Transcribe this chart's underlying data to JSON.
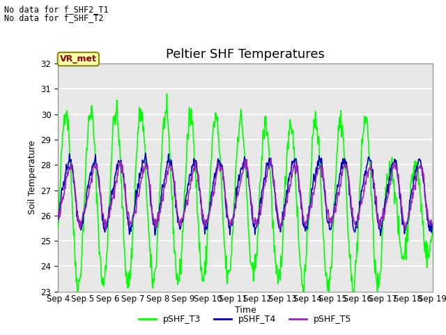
{
  "title": "Peltier SHF Temperatures",
  "xlabel": "Time",
  "ylabel": "Soil Temperature",
  "text_top_left_line1": "No data for f_SHF2_T1",
  "text_top_left_line2": "No data for f_SHF_T2",
  "annotation_box": "VR_met",
  "ylim": [
    23.0,
    32.0
  ],
  "yticks": [
    23.0,
    24.0,
    25.0,
    26.0,
    27.0,
    28.0,
    29.0,
    30.0,
    31.0,
    32.0
  ],
  "xtick_labels": [
    "Sep 4",
    "Sep 5",
    "Sep 6",
    "Sep 7",
    "Sep 8",
    "Sep 9",
    "Sep 10",
    "Sep 11",
    "Sep 12",
    "Sep 13",
    "Sep 14",
    "Sep 15",
    "Sep 16",
    "Sep 17",
    "Sep 18",
    "Sep 19"
  ],
  "legend_labels": [
    "pSHF_T3",
    "pSHF_T4",
    "pSHF_T5"
  ],
  "line_colors": [
    "#00ff00",
    "#0000bb",
    "#9922bb"
  ],
  "fig_bg_color": "#ffffff",
  "plot_bg_color": "#e8e8e8",
  "grid_color": "#ffffff",
  "title_fontsize": 13,
  "label_fontsize": 9,
  "tick_fontsize": 8.5,
  "n_days": 15,
  "pts_per_day": 48
}
